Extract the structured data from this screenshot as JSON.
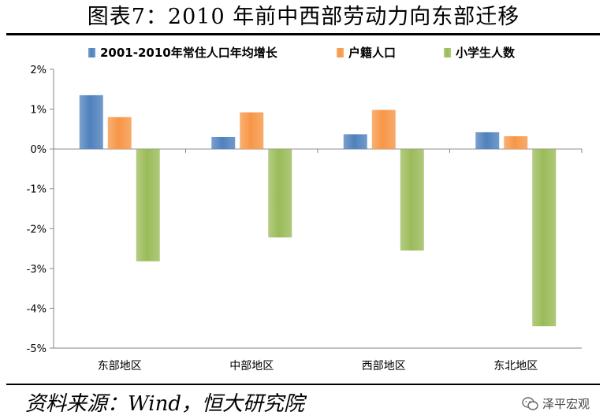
{
  "title": "图表7：2010 年前中西部劳动力向东部迁移",
  "source": "资料来源：Wind，恒大研究院",
  "watermark": {
    "text": "泽平宏观",
    "icon": "wechat-icon"
  },
  "colors": {
    "series1": "#4f81bd",
    "series2": "#f79646",
    "series3": "#9bbb59"
  },
  "chart_data": {
    "type": "bar",
    "categories": [
      "东部地区",
      "中部地区",
      "西部地区",
      "东北地区"
    ],
    "series": [
      {
        "name": "2001-2010年常住人口年均增长",
        "values": [
          1.35,
          0.3,
          0.37,
          0.42
        ]
      },
      {
        "name": "户籍人口",
        "values": [
          0.8,
          0.92,
          0.98,
          0.32
        ]
      },
      {
        "name": "小学生人数",
        "values": [
          -2.82,
          -2.22,
          -2.55,
          -4.45
        ]
      }
    ],
    "ylim": [
      -5,
      2
    ],
    "yticks": [
      "2%",
      "1%",
      "0%",
      "-1%",
      "-2%",
      "-3%",
      "-4%",
      "-5%"
    ],
    "ytick_values": [
      2,
      1,
      0,
      -1,
      -2,
      -3,
      -4,
      -5
    ],
    "xlabel": "",
    "ylabel": "",
    "legend_position": "top",
    "grid": false
  }
}
